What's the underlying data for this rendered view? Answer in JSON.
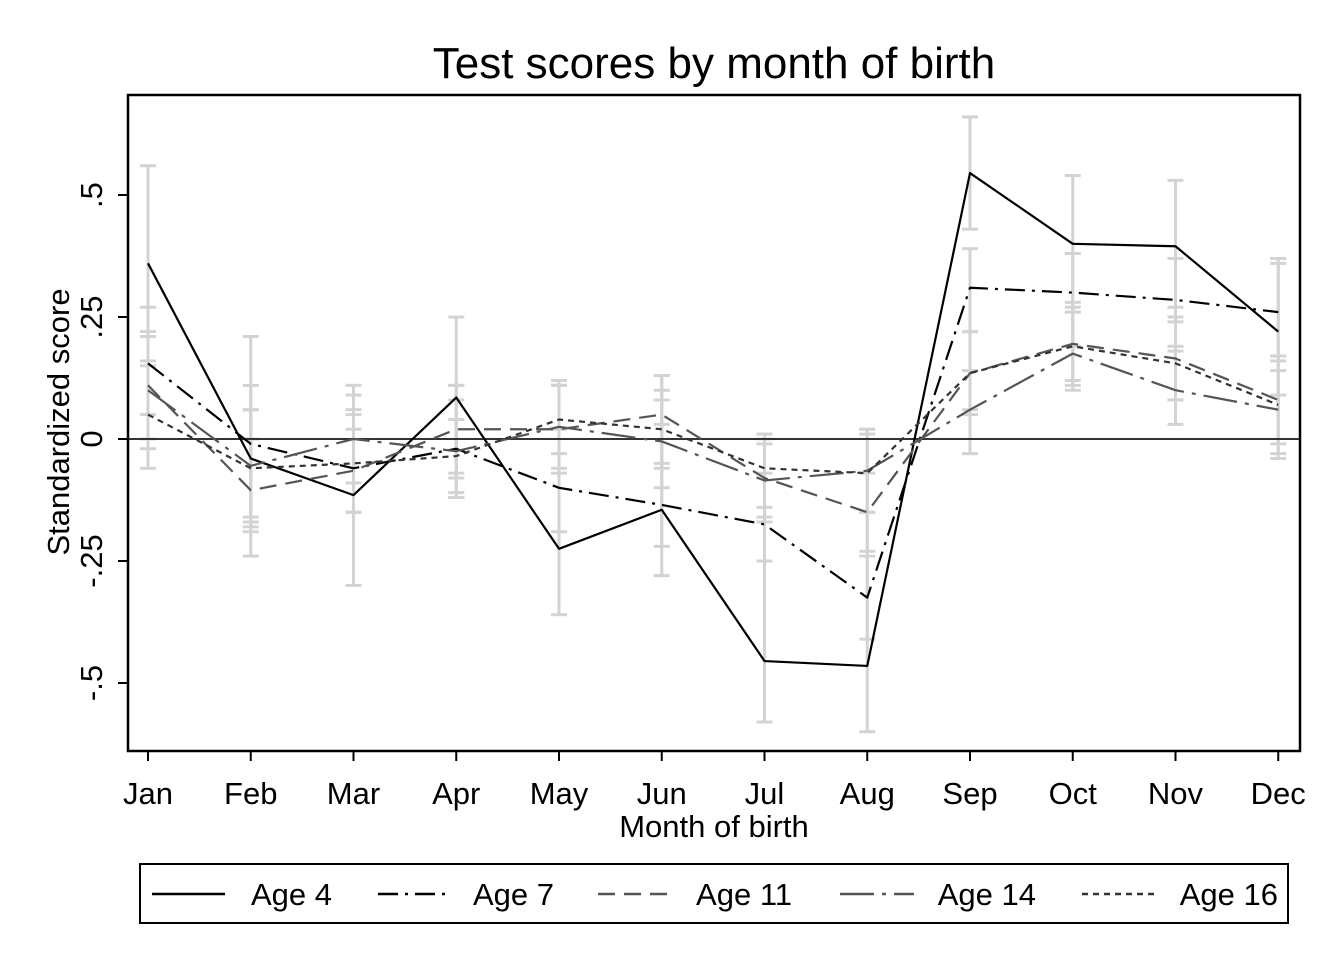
{
  "chart_data": {
    "type": "line",
    "title": "Test scores by month of birth",
    "xlabel": "Month of birth",
    "ylabel": "Standardized score",
    "categories": [
      "Jan",
      "Feb",
      "Mar",
      "Apr",
      "May",
      "Jun",
      "Jul",
      "Aug",
      "Sep",
      "Oct",
      "Nov",
      "Dec"
    ],
    "ylim": [
      -0.64,
      0.7
    ],
    "yticks": [
      {
        "value": -0.5,
        "label": "-.5"
      },
      {
        "value": -0.25,
        "label": "-.25"
      },
      {
        "value": 0,
        "label": "0"
      },
      {
        "value": 0.25,
        "label": ".25"
      },
      {
        "value": 0.5,
        "label": ".5"
      }
    ],
    "reference_line": 0,
    "grid": false,
    "legend_position": "bottom",
    "series": [
      {
        "name": "Age 4",
        "color": "#000000",
        "dash": "solid",
        "values": [
          0.36,
          -0.04,
          -0.115,
          0.085,
          -0.225,
          -0.145,
          -0.455,
          -0.465,
          0.545,
          0.4,
          0.395,
          0.22
        ],
        "ci_low": [
          0.15,
          -0.24,
          -0.3,
          -0.08,
          -0.36,
          -0.28,
          -0.58,
          -0.6,
          0.43,
          0.26,
          0.27,
          0.09
        ],
        "ci_high": [
          0.56,
          0.21,
          0.11,
          0.25,
          0.11,
          0.13,
          0.01,
          0.02,
          0.66,
          0.54,
          0.53,
          0.36
        ]
      },
      {
        "name": "Age 7",
        "color": "#000000",
        "dash": "dash-dot",
        "values": [
          0.155,
          -0.01,
          -0.06,
          -0.02,
          -0.1,
          -0.135,
          -0.175,
          -0.325,
          0.31,
          0.3,
          0.285,
          0.26
        ],
        "ci_low": [
          0.05,
          -0.18,
          -0.15,
          -0.12,
          -0.19,
          -0.22,
          -0.25,
          -0.41,
          0.22,
          0.19,
          0.18,
          0.16
        ],
        "ci_high": [
          0.27,
          0.11,
          0.05,
          0.11,
          0.02,
          0.03,
          -0.07,
          -0.24,
          0.39,
          0.38,
          0.37,
          0.37
        ]
      },
      {
        "name": "Age 11",
        "color": "#555555",
        "dash": "dashed",
        "values": [
          0.11,
          -0.105,
          -0.065,
          0.02,
          0.02,
          0.05,
          -0.08,
          -0.15,
          0.135,
          0.195,
          0.165,
          0.08
        ],
        "ci_low": [
          0.0,
          -0.19,
          -0.15,
          -0.07,
          -0.06,
          -0.05,
          -0.16,
          -0.23,
          0.05,
          0.11,
          0.08,
          -0.01
        ],
        "ci_high": [
          0.22,
          0.0,
          0.02,
          0.11,
          0.11,
          0.13,
          0.0,
          -0.07,
          0.22,
          0.28,
          0.25,
          0.17
        ]
      },
      {
        "name": "Age 14",
        "color": "#555555",
        "dash": "long-dash-dot",
        "values": [
          0.1,
          -0.055,
          0.0,
          -0.025,
          0.025,
          -0.005,
          -0.085,
          -0.065,
          0.06,
          0.175,
          0.1,
          0.06
        ],
        "ci_low": [
          -0.02,
          -0.16,
          -0.09,
          -0.12,
          -0.07,
          -0.1,
          -0.17,
          -0.15,
          -0.03,
          0.1,
          0.03,
          -0.03
        ],
        "ci_high": [
          0.21,
          0.06,
          0.09,
          0.08,
          0.11,
          0.08,
          -0.01,
          0.02,
          0.14,
          0.26,
          0.19,
          0.14
        ]
      },
      {
        "name": "Age 16",
        "color": "#333333",
        "dash": "dotted",
        "values": [
          0.05,
          -0.06,
          -0.05,
          -0.035,
          0.04,
          0.02,
          -0.06,
          -0.07,
          0.135,
          0.19,
          0.155,
          0.07
        ],
        "ci_low": [
          -0.06,
          -0.17,
          -0.15,
          -0.11,
          -0.03,
          -0.06,
          -0.14,
          -0.15,
          0.06,
          0.12,
          0.08,
          -0.04
        ],
        "ci_high": [
          0.16,
          0.06,
          0.06,
          0.04,
          0.12,
          0.1,
          0.01,
          0.01,
          0.22,
          0.27,
          0.24,
          0.17
        ]
      }
    ]
  }
}
